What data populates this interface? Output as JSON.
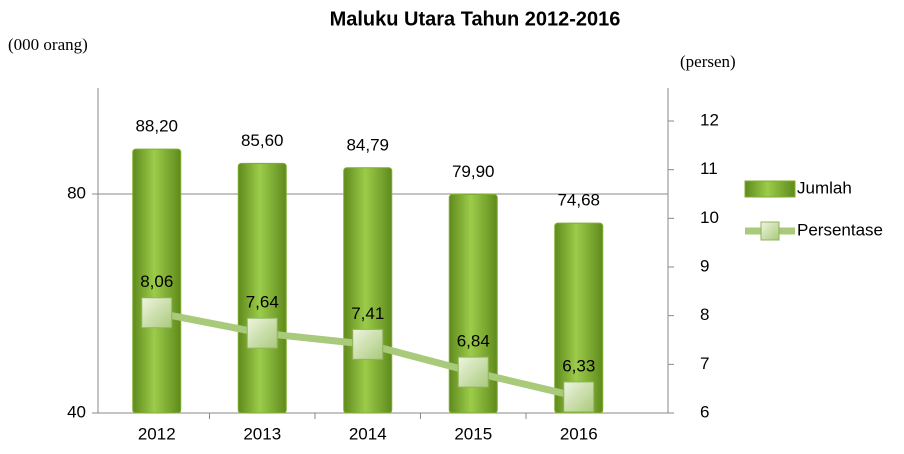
{
  "chart_data": {
    "type": "bar_line",
    "title": "Maluku Utara Tahun 2012-2016",
    "y_label": "(000 orang)",
    "y2_label": "(persen)",
    "categories": [
      "2012",
      "2013",
      "2014",
      "2015",
      "2016"
    ],
    "series": [
      {
        "name": "Jumlah",
        "type": "bar",
        "color": "#7fae2e",
        "values": [
          88.2,
          85.6,
          84.79,
          79.9,
          74.68
        ],
        "value_labels": [
          "88,20",
          "85,60",
          "84,79",
          "79,90",
          "74,68"
        ]
      },
      {
        "name": "Persentase",
        "type": "line",
        "axis": "y2",
        "color": "#a9c97b",
        "values": [
          8.06,
          7.64,
          7.41,
          6.84,
          6.33
        ],
        "value_labels": [
          "8,06",
          "7,64",
          "7,41",
          "6,84",
          "6,33"
        ]
      }
    ],
    "ylim": [
      40,
      100
    ],
    "yticks": [
      40,
      80
    ],
    "y2lim": [
      6,
      12.75
    ],
    "y2ticks": [
      6,
      7,
      8,
      9,
      10,
      11,
      12
    ],
    "grid": true
  }
}
